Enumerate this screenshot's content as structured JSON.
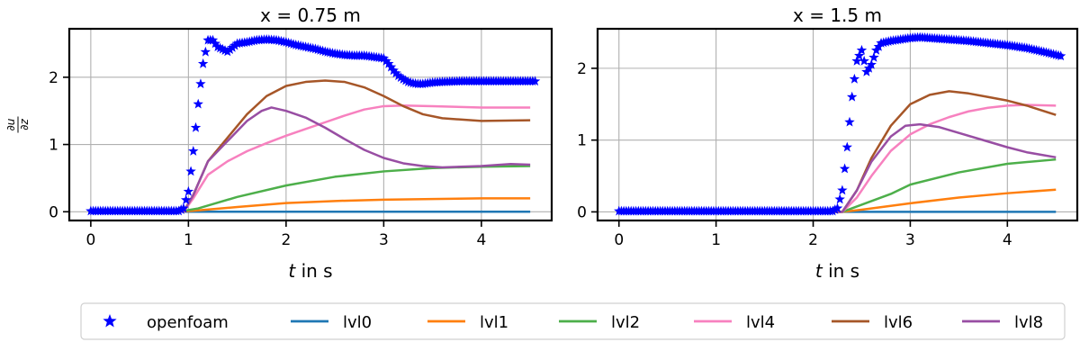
{
  "chart_data": [
    {
      "type": "line",
      "title": "x = 0.75 m",
      "xlabel_var": "t",
      "xlabel_rest": " in s",
      "ylabel_num": "∂u",
      "ylabel_den": "∂z",
      "xlim": [
        -0.22,
        4.72
      ],
      "ylim": [
        -0.13,
        2.72
      ],
      "xticks": [
        0,
        1,
        2,
        3,
        4
      ],
      "yticks": [
        0,
        1,
        2
      ],
      "grid": true,
      "series": [
        {
          "name": "openfoam",
          "color": "#0000ff",
          "marker": "star",
          "x": [
            0,
            0.9,
            0.95,
            1.0,
            1.05,
            1.1,
            1.15,
            1.2,
            1.25,
            1.3,
            1.4,
            1.5,
            1.6,
            1.7,
            1.8,
            1.9,
            2.0,
            2.1,
            2.2,
            2.3,
            2.4,
            2.5,
            2.6,
            2.7,
            2.8,
            2.9,
            3.0,
            3.05,
            3.1,
            3.15,
            3.2,
            3.25,
            3.3,
            3.35,
            3.4,
            3.5,
            3.6,
            3.8,
            4.0,
            4.2,
            4.4,
            4.55
          ],
          "y": [
            0.01,
            0.01,
            0.05,
            0.3,
            0.9,
            1.6,
            2.2,
            2.55,
            2.55,
            2.45,
            2.38,
            2.5,
            2.52,
            2.55,
            2.56,
            2.55,
            2.52,
            2.48,
            2.45,
            2.42,
            2.38,
            2.35,
            2.33,
            2.32,
            2.32,
            2.3,
            2.28,
            2.2,
            2.1,
            2.02,
            1.97,
            1.93,
            1.91,
            1.9,
            1.9,
            1.92,
            1.93,
            1.94,
            1.94,
            1.94,
            1.94,
            1.94
          ]
        },
        {
          "name": "lvl0",
          "color": "#1f77b4",
          "x": [
            0,
            1.0,
            2.0,
            3.0,
            4.0,
            4.5
          ],
          "y": [
            0,
            0,
            0,
            0,
            0,
            0
          ]
        },
        {
          "name": "lvl1",
          "color": "#ff7f0e",
          "x": [
            0,
            0.9,
            1.1,
            1.5,
            2.0,
            2.5,
            3.0,
            3.5,
            4.0,
            4.5
          ],
          "y": [
            0,
            0,
            0.02,
            0.07,
            0.13,
            0.16,
            0.18,
            0.19,
            0.2,
            0.2
          ]
        },
        {
          "name": "lvl2",
          "color": "#4daf4a",
          "x": [
            0,
            0.9,
            1.1,
            1.5,
            2.0,
            2.5,
            3.0,
            3.5,
            4.0,
            4.5
          ],
          "y": [
            0,
            0,
            0.05,
            0.22,
            0.39,
            0.52,
            0.6,
            0.65,
            0.67,
            0.68
          ]
        },
        {
          "name": "lvl4",
          "color": "#f781bf",
          "x": [
            0,
            0.95,
            1.05,
            1.2,
            1.4,
            1.6,
            1.8,
            2.0,
            2.2,
            2.4,
            2.6,
            2.8,
            3.0,
            3.2,
            3.5,
            4.0,
            4.5
          ],
          "y": [
            0,
            0,
            0.2,
            0.55,
            0.75,
            0.9,
            1.02,
            1.13,
            1.23,
            1.33,
            1.43,
            1.52,
            1.57,
            1.58,
            1.57,
            1.55,
            1.55
          ]
        },
        {
          "name": "lvl6",
          "color": "#a65628",
          "x": [
            0,
            0.95,
            1.05,
            1.2,
            1.4,
            1.6,
            1.8,
            2.0,
            2.2,
            2.4,
            2.6,
            2.8,
            3.0,
            3.2,
            3.4,
            3.6,
            4.0,
            4.5
          ],
          "y": [
            0,
            0,
            0.25,
            0.75,
            1.1,
            1.45,
            1.72,
            1.87,
            1.93,
            1.95,
            1.93,
            1.85,
            1.72,
            1.57,
            1.45,
            1.39,
            1.35,
            1.36
          ]
        },
        {
          "name": "lvl8",
          "color": "#984ea3",
          "x": [
            0,
            0.95,
            1.05,
            1.2,
            1.4,
            1.6,
            1.75,
            1.85,
            2.0,
            2.2,
            2.4,
            2.6,
            2.8,
            3.0,
            3.2,
            3.4,
            3.6,
            4.0,
            4.3,
            4.5
          ],
          "y": [
            0,
            0,
            0.25,
            0.75,
            1.05,
            1.35,
            1.5,
            1.55,
            1.5,
            1.4,
            1.25,
            1.08,
            0.92,
            0.8,
            0.72,
            0.68,
            0.66,
            0.68,
            0.71,
            0.7
          ]
        }
      ]
    },
    {
      "type": "line",
      "title": "x = 1.5 m",
      "xlabel_var": "t",
      "xlabel_rest": " in s",
      "xlim": [
        -0.22,
        4.72
      ],
      "ylim": [
        -0.12,
        2.55
      ],
      "xticks": [
        0,
        1,
        2,
        3,
        4
      ],
      "yticks": [
        0,
        1,
        2
      ],
      "grid": true,
      "series": [
        {
          "name": "openfoam",
          "color": "#0000ff",
          "marker": "star",
          "x": [
            0,
            2.2,
            2.25,
            2.3,
            2.35,
            2.4,
            2.45,
            2.5,
            2.55,
            2.6,
            2.65,
            2.7,
            2.8,
            2.9,
            3.0,
            3.1,
            3.2,
            3.4,
            3.6,
            3.8,
            4.0,
            4.2,
            4.4,
            4.55
          ],
          "y": [
            0.01,
            0.01,
            0.05,
            0.3,
            0.9,
            1.6,
            2.1,
            2.25,
            1.95,
            2.05,
            2.25,
            2.35,
            2.38,
            2.4,
            2.42,
            2.43,
            2.42,
            2.4,
            2.38,
            2.35,
            2.32,
            2.28,
            2.22,
            2.17
          ]
        },
        {
          "name": "lvl0",
          "color": "#1f77b4",
          "x": [
            0,
            1.0,
            2.0,
            3.0,
            4.0,
            4.5
          ],
          "y": [
            0,
            0,
            0,
            0,
            0,
            0
          ]
        },
        {
          "name": "lvl1",
          "color": "#ff7f0e",
          "x": [
            0,
            2.3,
            2.5,
            3.0,
            3.5,
            4.0,
            4.5
          ],
          "y": [
            0,
            0,
            0.03,
            0.12,
            0.2,
            0.26,
            0.31
          ]
        },
        {
          "name": "lvl2",
          "color": "#4daf4a",
          "x": [
            0,
            2.3,
            2.5,
            2.8,
            3.0,
            3.5,
            4.0,
            4.5
          ],
          "y": [
            0,
            0,
            0.1,
            0.25,
            0.38,
            0.55,
            0.67,
            0.73
          ]
        },
        {
          "name": "lvl4",
          "color": "#f781bf",
          "x": [
            0,
            2.3,
            2.45,
            2.6,
            2.8,
            3.0,
            3.2,
            3.4,
            3.6,
            3.8,
            4.0,
            4.2,
            4.5
          ],
          "y": [
            0,
            0,
            0.2,
            0.5,
            0.85,
            1.08,
            1.22,
            1.32,
            1.4,
            1.45,
            1.48,
            1.49,
            1.48
          ]
        },
        {
          "name": "lvl6",
          "color": "#a65628",
          "x": [
            0,
            2.3,
            2.45,
            2.6,
            2.8,
            3.0,
            3.2,
            3.4,
            3.6,
            3.8,
            4.0,
            4.2,
            4.5
          ],
          "y": [
            0,
            0,
            0.3,
            0.75,
            1.2,
            1.5,
            1.63,
            1.68,
            1.65,
            1.6,
            1.55,
            1.48,
            1.35
          ]
        },
        {
          "name": "lvl8",
          "color": "#984ea3",
          "x": [
            0,
            2.3,
            2.45,
            2.6,
            2.8,
            2.95,
            3.1,
            3.3,
            3.5,
            3.8,
            4.0,
            4.2,
            4.5
          ],
          "y": [
            0,
            0,
            0.3,
            0.7,
            1.05,
            1.2,
            1.22,
            1.18,
            1.1,
            0.98,
            0.9,
            0.83,
            0.76
          ]
        }
      ]
    }
  ],
  "legend": {
    "placement": "bottom-center",
    "entries": [
      {
        "label": "openfoam",
        "color": "#0000ff",
        "marker": "star"
      },
      {
        "label": "lvl0",
        "color": "#1f77b4",
        "marker": "line"
      },
      {
        "label": "lvl1",
        "color": "#ff7f0e",
        "marker": "line"
      },
      {
        "label": "lvl2",
        "color": "#4daf4a",
        "marker": "line"
      },
      {
        "label": "lvl4",
        "color": "#f781bf",
        "marker": "line"
      },
      {
        "label": "lvl6",
        "color": "#a65628",
        "marker": "line"
      },
      {
        "label": "lvl8",
        "color": "#984ea3",
        "marker": "line"
      }
    ]
  }
}
